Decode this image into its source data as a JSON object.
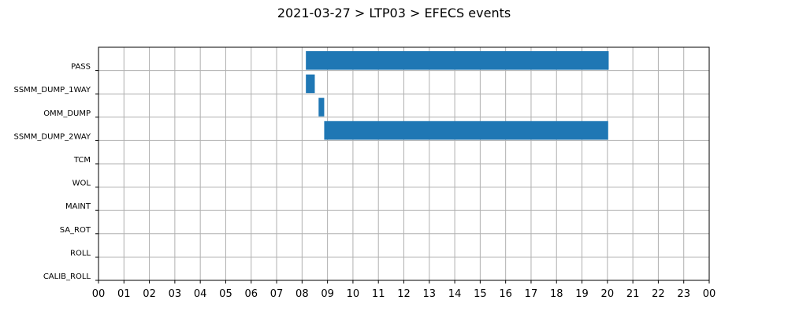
{
  "chart_data": {
    "type": "bar",
    "orientation": "horizontal-gantt",
    "title": "2021-03-27 > LTP03 > EFECS events",
    "xlabel": "",
    "ylabel": "",
    "xlim": [
      0,
      24
    ],
    "x_tick_labels": [
      "00",
      "01",
      "02",
      "03",
      "04",
      "05",
      "06",
      "07",
      "08",
      "09",
      "10",
      "11",
      "12",
      "13",
      "14",
      "15",
      "16",
      "17",
      "18",
      "19",
      "20",
      "21",
      "22",
      "23",
      "00"
    ],
    "categories": [
      "PASS",
      "SSMM_DUMP_1WAY",
      "OMM_DUMP",
      "SSMM_DUMP_2WAY",
      "TCM",
      "WOL",
      "MAINT",
      "SA_ROT",
      "ROLL",
      "CALIB_ROLL"
    ],
    "events": [
      {
        "category": "PASS",
        "start": 8.15,
        "end": 20.05
      },
      {
        "category": "SSMM_DUMP_1WAY",
        "start": 8.15,
        "end": 8.5
      },
      {
        "category": "OMM_DUMP",
        "start": 8.65,
        "end": 8.87
      },
      {
        "category": "SSMM_DUMP_2WAY",
        "start": 8.87,
        "end": 20.03
      }
    ],
    "bar_color": "#1f77b4",
    "grid": true
  }
}
